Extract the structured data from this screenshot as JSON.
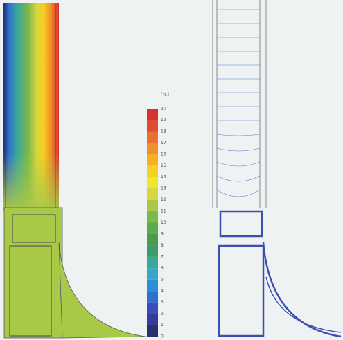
{
  "legend": {
    "unit": "[°C]",
    "labels": [
      0,
      1,
      2,
      3,
      4,
      5,
      6,
      7,
      8,
      9,
      10,
      11,
      12,
      13,
      14,
      15,
      16,
      17,
      18,
      19,
      20
    ],
    "colors": [
      "#2b2f6b",
      "#363c96",
      "#3a4eb8",
      "#2f6fd0",
      "#2a8fd8",
      "#38a6c8",
      "#3aa898",
      "#3c9c6c",
      "#4c9a4c",
      "#5caa4a",
      "#7cb84a",
      "#a8c848",
      "#d6d640",
      "#f0e630",
      "#f8d020",
      "#f8b022",
      "#f09028",
      "#e87030",
      "#e04a30",
      "#d83030"
    ]
  }
}
